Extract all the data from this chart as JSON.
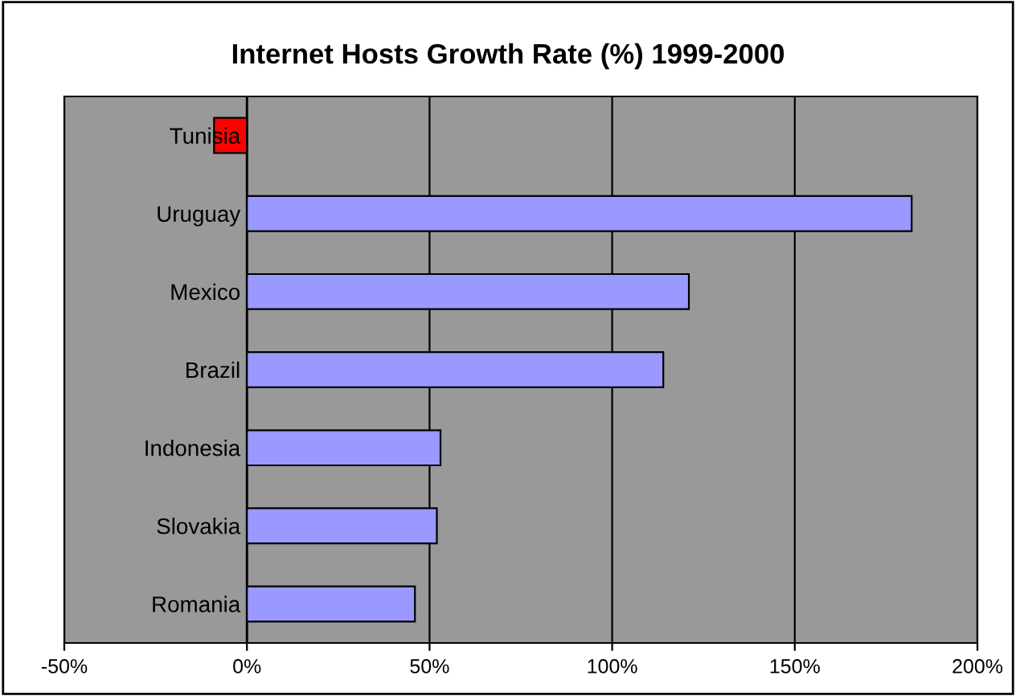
{
  "chart_data": {
    "type": "bar",
    "orientation": "horizontal",
    "title": "Internet Hosts Growth Rate (%) 1999-2000",
    "categories": [
      "Tunisia",
      "Uruguay",
      "Mexico",
      "Brazil",
      "Indonesia",
      "Slovakia",
      "Romania"
    ],
    "values": [
      -9,
      182,
      121,
      114,
      53,
      52,
      46
    ],
    "colors": [
      "#ff0000",
      "#9999ff",
      "#9999ff",
      "#9999ff",
      "#9999ff",
      "#9999ff",
      "#9999ff"
    ],
    "xlim": [
      -50,
      200
    ],
    "xticks": [
      {
        "value": -50,
        "label": "-50%"
      },
      {
        "value": 0,
        "label": "0%"
      },
      {
        "value": 50,
        "label": "50%"
      },
      {
        "value": 100,
        "label": "100%"
      },
      {
        "value": 150,
        "label": "150%"
      },
      {
        "value": 200,
        "label": "200%"
      }
    ],
    "grid": "x",
    "legend": false
  }
}
